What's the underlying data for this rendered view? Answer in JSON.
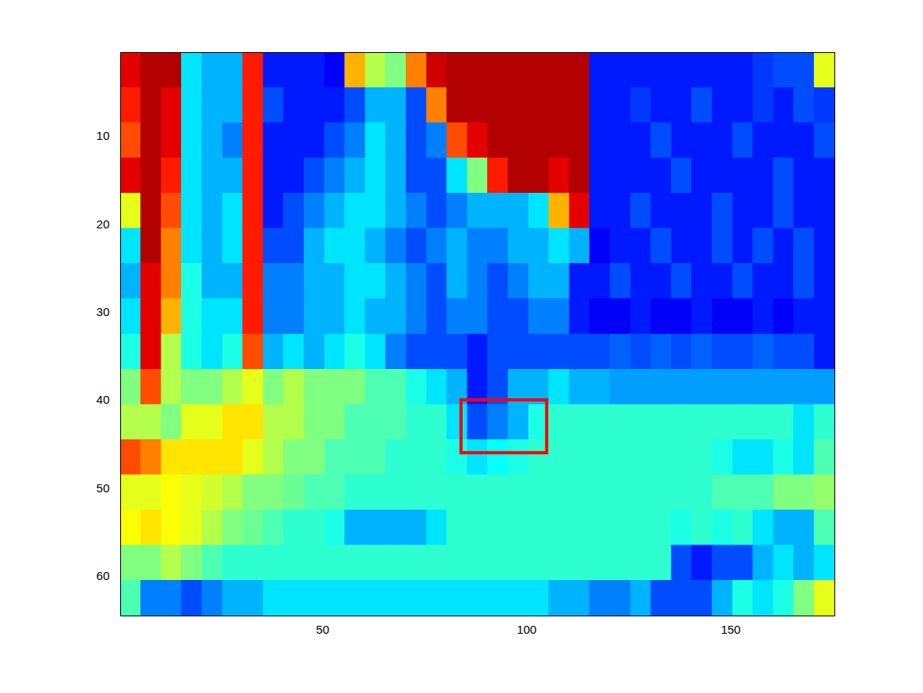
{
  "chart_data": {
    "type": "heatmap",
    "color": "jet",
    "xlim": [
      0.5,
      175.5
    ],
    "ylim": [
      64.5,
      0.5
    ],
    "xticks": [
      50,
      100,
      150
    ],
    "yticks": [
      10,
      20,
      30,
      40,
      50,
      60
    ],
    "zlim": [
      0,
      1
    ],
    "x_edges": [
      0.5,
      5.5,
      10.5,
      15.5,
      20.5,
      25.5,
      30.5,
      35.5,
      40.5,
      45.5,
      50.5,
      55.5,
      60.5,
      65.5,
      70.5,
      75.5,
      80.5,
      85.5,
      90.5,
      95.5,
      100.5,
      105.5,
      110.5,
      115.5,
      120.5,
      125.5,
      130.5,
      135.5,
      140.5,
      145.5,
      150.5,
      155.5,
      160.5,
      165.5,
      170.5,
      175.5
    ],
    "y_edges": [
      0.5,
      4.5,
      8.5,
      12.5,
      16.5,
      20.5,
      24.5,
      28.5,
      32.5,
      36.5,
      40.5,
      44.5,
      48.5,
      52.5,
      56.5,
      60.5,
      64.5
    ],
    "values": [
      [
        0.9,
        0.95,
        0.95,
        0.35,
        0.3,
        0.3,
        0.85,
        0.15,
        0.15,
        0.15,
        0.12,
        0.7,
        0.55,
        0.5,
        0.75,
        0.92,
        0.95,
        0.95,
        0.95,
        0.95,
        0.95,
        0.95,
        0.95,
        0.15,
        0.15,
        0.15,
        0.15,
        0.15,
        0.15,
        0.15,
        0.15,
        0.18,
        0.2,
        0.2,
        0.6
      ],
      [
        0.85,
        0.95,
        0.9,
        0.35,
        0.3,
        0.3,
        0.85,
        0.2,
        0.15,
        0.15,
        0.15,
        0.2,
        0.3,
        0.3,
        0.2,
        0.75,
        0.95,
        0.95,
        0.95,
        0.95,
        0.95,
        0.95,
        0.95,
        0.15,
        0.15,
        0.18,
        0.15,
        0.15,
        0.2,
        0.15,
        0.15,
        0.18,
        0.15,
        0.2,
        0.18
      ],
      [
        0.8,
        0.95,
        0.9,
        0.35,
        0.3,
        0.25,
        0.85,
        0.15,
        0.15,
        0.15,
        0.2,
        0.25,
        0.35,
        0.3,
        0.2,
        0.25,
        0.8,
        0.9,
        0.95,
        0.95,
        0.95,
        0.95,
        0.95,
        0.15,
        0.15,
        0.15,
        0.2,
        0.15,
        0.15,
        0.15,
        0.2,
        0.15,
        0.15,
        0.15,
        0.2
      ],
      [
        0.9,
        0.95,
        0.85,
        0.35,
        0.3,
        0.3,
        0.85,
        0.15,
        0.15,
        0.2,
        0.25,
        0.3,
        0.35,
        0.3,
        0.2,
        0.2,
        0.35,
        0.5,
        0.85,
        0.95,
        0.95,
        0.9,
        0.95,
        0.15,
        0.15,
        0.15,
        0.15,
        0.2,
        0.15,
        0.15,
        0.15,
        0.15,
        0.2,
        0.15,
        0.15
      ],
      [
        0.6,
        0.95,
        0.8,
        0.35,
        0.3,
        0.35,
        0.85,
        0.15,
        0.2,
        0.25,
        0.3,
        0.35,
        0.35,
        0.3,
        0.25,
        0.2,
        0.25,
        0.3,
        0.3,
        0.3,
        0.35,
        0.7,
        0.9,
        0.15,
        0.15,
        0.2,
        0.15,
        0.15,
        0.15,
        0.2,
        0.15,
        0.15,
        0.2,
        0.15,
        0.15
      ],
      [
        0.35,
        0.95,
        0.75,
        0.35,
        0.3,
        0.35,
        0.85,
        0.2,
        0.2,
        0.3,
        0.35,
        0.35,
        0.3,
        0.25,
        0.2,
        0.25,
        0.3,
        0.25,
        0.25,
        0.3,
        0.3,
        0.35,
        0.3,
        0.12,
        0.15,
        0.15,
        0.2,
        0.15,
        0.15,
        0.2,
        0.15,
        0.2,
        0.15,
        0.2,
        0.15
      ],
      [
        0.3,
        0.9,
        0.75,
        0.4,
        0.3,
        0.3,
        0.85,
        0.25,
        0.25,
        0.3,
        0.3,
        0.35,
        0.35,
        0.3,
        0.25,
        0.2,
        0.3,
        0.25,
        0.2,
        0.25,
        0.3,
        0.3,
        0.15,
        0.15,
        0.2,
        0.15,
        0.15,
        0.2,
        0.15,
        0.15,
        0.2,
        0.15,
        0.15,
        0.2,
        0.15
      ],
      [
        0.35,
        0.9,
        0.7,
        0.4,
        0.35,
        0.35,
        0.85,
        0.25,
        0.25,
        0.3,
        0.3,
        0.35,
        0.3,
        0.3,
        0.25,
        0.2,
        0.25,
        0.25,
        0.2,
        0.2,
        0.25,
        0.25,
        0.15,
        0.12,
        0.12,
        0.15,
        0.12,
        0.12,
        0.15,
        0.12,
        0.12,
        0.15,
        0.12,
        0.15,
        0.15
      ],
      [
        0.4,
        0.9,
        0.55,
        0.4,
        0.35,
        0.4,
        0.8,
        0.3,
        0.35,
        0.3,
        0.35,
        0.4,
        0.35,
        0.25,
        0.2,
        0.2,
        0.2,
        0.15,
        0.2,
        0.2,
        0.2,
        0.2,
        0.2,
        0.2,
        0.22,
        0.2,
        0.22,
        0.2,
        0.22,
        0.2,
        0.2,
        0.22,
        0.2,
        0.2,
        0.15
      ],
      [
        0.5,
        0.8,
        0.55,
        0.5,
        0.5,
        0.55,
        0.6,
        0.5,
        0.55,
        0.5,
        0.5,
        0.5,
        0.45,
        0.45,
        0.4,
        0.35,
        0.3,
        0.15,
        0.2,
        0.3,
        0.3,
        0.35,
        0.3,
        0.3,
        0.28,
        0.28,
        0.28,
        0.28,
        0.28,
        0.28,
        0.28,
        0.28,
        0.28,
        0.28,
        0.28
      ],
      [
        0.55,
        0.55,
        0.5,
        0.6,
        0.6,
        0.65,
        0.65,
        0.55,
        0.55,
        0.5,
        0.5,
        0.45,
        0.45,
        0.45,
        0.42,
        0.42,
        0.35,
        0.2,
        0.25,
        0.3,
        0.4,
        0.42,
        0.42,
        0.42,
        0.42,
        0.42,
        0.42,
        0.42,
        0.42,
        0.42,
        0.42,
        0.42,
        0.42,
        0.35,
        0.42
      ],
      [
        0.8,
        0.75,
        0.65,
        0.65,
        0.65,
        0.65,
        0.6,
        0.55,
        0.5,
        0.5,
        0.45,
        0.45,
        0.45,
        0.42,
        0.42,
        0.42,
        0.4,
        0.35,
        0.38,
        0.4,
        0.42,
        0.42,
        0.42,
        0.42,
        0.42,
        0.42,
        0.42,
        0.42,
        0.42,
        0.4,
        0.35,
        0.35,
        0.4,
        0.35,
        0.45
      ],
      [
        0.6,
        0.6,
        0.62,
        0.6,
        0.58,
        0.55,
        0.5,
        0.5,
        0.48,
        0.45,
        0.45,
        0.42,
        0.42,
        0.42,
        0.42,
        0.42,
        0.42,
        0.42,
        0.42,
        0.42,
        0.42,
        0.42,
        0.42,
        0.42,
        0.42,
        0.42,
        0.42,
        0.42,
        0.42,
        0.45,
        0.45,
        0.45,
        0.5,
        0.5,
        0.52
      ],
      [
        0.62,
        0.65,
        0.62,
        0.6,
        0.55,
        0.5,
        0.48,
        0.45,
        0.42,
        0.42,
        0.4,
        0.3,
        0.3,
        0.3,
        0.3,
        0.35,
        0.42,
        0.42,
        0.42,
        0.42,
        0.42,
        0.42,
        0.42,
        0.42,
        0.42,
        0.42,
        0.42,
        0.4,
        0.42,
        0.4,
        0.42,
        0.35,
        0.3,
        0.3,
        0.45
      ],
      [
        0.5,
        0.5,
        0.55,
        0.5,
        0.45,
        0.42,
        0.42,
        0.42,
        0.42,
        0.42,
        0.42,
        0.42,
        0.42,
        0.42,
        0.42,
        0.42,
        0.42,
        0.42,
        0.42,
        0.42,
        0.42,
        0.42,
        0.42,
        0.42,
        0.42,
        0.42,
        0.42,
        0.2,
        0.15,
        0.2,
        0.2,
        0.3,
        0.35,
        0.3,
        0.35
      ],
      [
        0.45,
        0.25,
        0.25,
        0.2,
        0.25,
        0.3,
        0.3,
        0.35,
        0.35,
        0.35,
        0.35,
        0.35,
        0.35,
        0.35,
        0.35,
        0.35,
        0.35,
        0.35,
        0.35,
        0.35,
        0.35,
        0.3,
        0.3,
        0.25,
        0.25,
        0.3,
        0.2,
        0.2,
        0.2,
        0.3,
        0.4,
        0.35,
        0.4,
        0.5,
        0.6
      ]
    ],
    "rectangle": {
      "x": [
        84,
        105
      ],
      "y": [
        40,
        46
      ],
      "color": "red"
    }
  }
}
